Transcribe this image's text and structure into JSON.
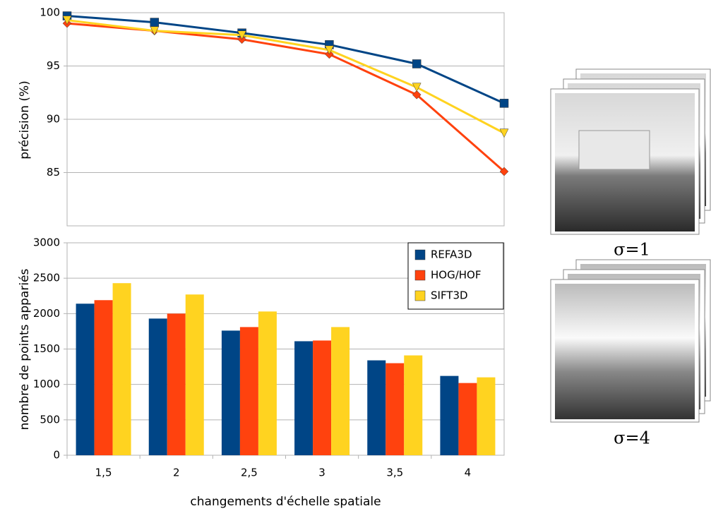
{
  "chart_data": [
    {
      "type": "line",
      "ylabel": "précision (%)",
      "ylim": [
        80,
        100
      ],
      "yticks": [
        85,
        90,
        95,
        100
      ],
      "grid": true,
      "series": [
        {
          "name": "REFA3D",
          "color": "#004586",
          "marker": "square",
          "values": [
            99.7,
            99.1,
            98.1,
            97.0,
            95.2,
            91.5
          ]
        },
        {
          "name": "HOG/HOF",
          "color": "#ff420e",
          "marker": "diamond",
          "values": [
            99.0,
            98.3,
            97.5,
            96.1,
            92.3,
            85.1
          ]
        },
        {
          "name": "SIFT3D",
          "color": "#ffd320",
          "marker": "triangle-down",
          "values": [
            99.3,
            98.3,
            97.9,
            96.5,
            93.0,
            88.7
          ]
        }
      ]
    },
    {
      "type": "bar",
      "ylabel": "nombre de points appariés",
      "xlabel": "changements d'échelle spatiale",
      "categories": [
        "1,5",
        "2",
        "2,5",
        "3",
        "3,5",
        "4"
      ],
      "ylim": [
        0,
        3000
      ],
      "yticks": [
        0,
        500,
        1000,
        1500,
        2000,
        2500,
        3000
      ],
      "grid": true,
      "legend": "top-right",
      "series": [
        {
          "name": "REFA3D",
          "color": "#004586",
          "values": [
            2140,
            1930,
            1760,
            1610,
            1340,
            1120
          ]
        },
        {
          "name": "HOG/HOF",
          "color": "#ff420e",
          "values": [
            2190,
            2000,
            1810,
            1620,
            1300,
            1020
          ]
        },
        {
          "name": "SIFT3D",
          "color": "#ffd320",
          "values": [
            2430,
            2270,
            2030,
            1810,
            1410,
            1100
          ]
        }
      ]
    }
  ],
  "images": [
    {
      "caption": "σ=1"
    },
    {
      "caption": "σ=4"
    }
  ]
}
